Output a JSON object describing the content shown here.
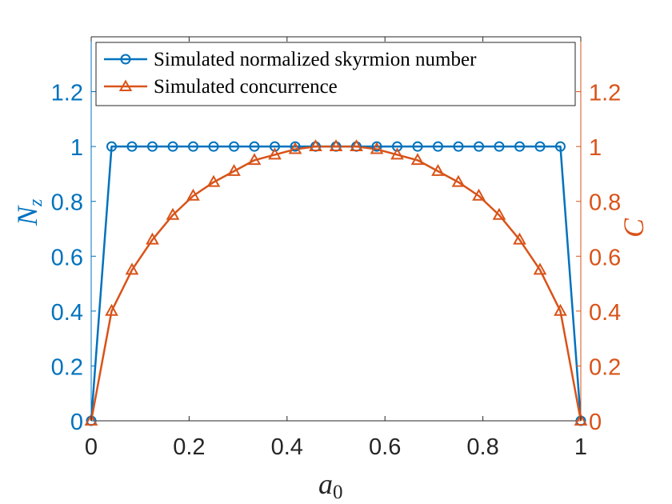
{
  "chart_data": {
    "type": "line",
    "xlabel": "a",
    "xlabel_sub": "0",
    "ylabel_left": "N",
    "ylabel_left_sub": "z",
    "ylabel_right": "C",
    "xlim": [
      0,
      1
    ],
    "ylim_left": [
      0,
      1.4
    ],
    "ylim_right": [
      0,
      1.4
    ],
    "x_ticks": [
      "0",
      "0.2",
      "0.4",
      "0.6",
      "0.8",
      "1"
    ],
    "y_ticks_left": [
      "0",
      "0.2",
      "0.4",
      "0.6",
      "0.8",
      "1",
      "1.2"
    ],
    "y_ticks_right": [
      "0",
      "0.2",
      "0.4",
      "0.6",
      "0.8",
      "1",
      "1.2"
    ],
    "x_tick_values": [
      0,
      0.2,
      0.4,
      0.6,
      0.8,
      1
    ],
    "y_tick_values": [
      0,
      0.2,
      0.4,
      0.6,
      0.8,
      1,
      1.2
    ],
    "grid": false,
    "legend_position": "top",
    "x": [
      0,
      0.0417,
      0.0833,
      0.125,
      0.1667,
      0.2083,
      0.25,
      0.2917,
      0.3333,
      0.375,
      0.4167,
      0.4583,
      0.5,
      0.5417,
      0.5833,
      0.625,
      0.6667,
      0.7083,
      0.75,
      0.7917,
      0.8333,
      0.875,
      0.9167,
      0.9583,
      1
    ],
    "series": [
      {
        "name": "Simulated normalized skyrmion number",
        "axis": "left",
        "color": "#0072BD",
        "marker": "circle",
        "values": [
          0,
          1,
          1,
          1,
          1,
          1,
          1,
          1,
          1,
          1,
          1,
          1,
          1,
          1,
          1,
          1,
          1,
          1,
          1,
          1,
          1,
          1,
          1,
          1,
          0
        ]
      },
      {
        "name": "Simulated concurrence",
        "axis": "right",
        "color": "#D95319",
        "marker": "triangle",
        "values": [
          0,
          0.4,
          0.55,
          0.66,
          0.75,
          0.82,
          0.87,
          0.91,
          0.95,
          0.97,
          0.99,
          1.0,
          1.0,
          1.0,
          0.99,
          0.97,
          0.95,
          0.91,
          0.87,
          0.82,
          0.75,
          0.66,
          0.55,
          0.4,
          0
        ]
      }
    ]
  }
}
